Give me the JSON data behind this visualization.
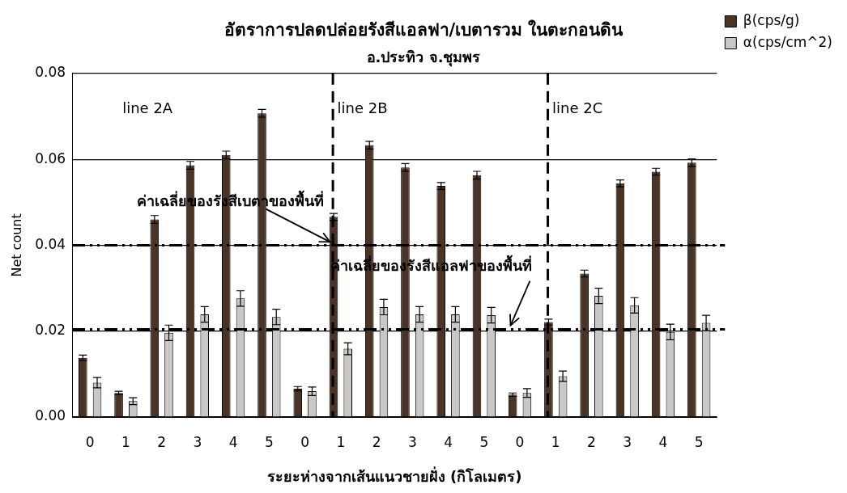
{
  "chart_data": {
    "type": "bar",
    "title": "อัตราการปลดปล่อยรังสีแอลฟา/เบตารวม ในตะกอนดิน",
    "subtitle": "อ.ประทิว จ.ชุมพร",
    "xlabel": "ระยะห่างจากเส้นแนวชายฝั่ง (กิโลเมตร)",
    "ylabel": "Net count",
    "categories": [
      "0",
      "1",
      "2",
      "3",
      "4",
      "5",
      "0",
      "1",
      "2",
      "3",
      "4",
      "5",
      "0",
      "1",
      "2",
      "3",
      "4",
      "5"
    ],
    "series": [
      {
        "name": "β(cps/g)",
        "color": "#4a3426",
        "values": [
          0.0138,
          0.0056,
          0.046,
          0.0586,
          0.061,
          0.0707,
          0.0066,
          0.0466,
          0.0633,
          0.0581,
          0.0538,
          0.0563,
          0.0052,
          0.0221,
          0.0334,
          0.0544,
          0.0571,
          0.0592
        ],
        "errors": [
          0.0006,
          0.0004,
          0.0009,
          0.0009,
          0.0009,
          0.0009,
          0.0005,
          0.0008,
          0.0009,
          0.0009,
          0.0008,
          0.0009,
          0.0004,
          0.0007,
          0.0008,
          0.0008,
          0.0008,
          0.0009
        ]
      },
      {
        "name": "α(cps/cm^2)",
        "color": "#c8c8c8",
        "values": [
          0.008,
          0.0037,
          0.0196,
          0.0239,
          0.0276,
          0.0233,
          0.006,
          0.0159,
          0.0256,
          0.0239,
          0.0239,
          0.0237,
          0.0056,
          0.0095,
          0.0282,
          0.026,
          0.0198,
          0.0219
        ],
        "errors": [
          0.0012,
          0.0008,
          0.0018,
          0.0018,
          0.0018,
          0.0018,
          0.001,
          0.0014,
          0.0018,
          0.0018,
          0.0018,
          0.0018,
          0.001,
          0.0012,
          0.0018,
          0.0018,
          0.0018,
          0.0018
        ]
      }
    ],
    "ylim": [
      0,
      0.08
    ],
    "yticks": [
      {
        "value": 0,
        "label": "0.00"
      },
      {
        "value": 0.02,
        "label": "0.02"
      },
      {
        "value": 0.04,
        "label": "0.04"
      },
      {
        "value": 0.06,
        "label": "0.06"
      },
      {
        "value": 0.08,
        "label": "0.08"
      }
    ],
    "grid": "y",
    "legend": "top right",
    "ref_lines": [
      {
        "axis": "y",
        "value": 0.04,
        "label": "ค่าเฉลี่ยของรังสีเบตาของพื้นที่",
        "color": "#000000",
        "line_style": "dashed"
      },
      {
        "axis": "y",
        "value": 0.0204,
        "label": "ค่าเฉลี่ยของรังสีแอลฟาของพื้นที่",
        "color": "#000000",
        "line_style": "dashed"
      }
    ],
    "annotations": [
      "line 2A",
      "line 2B",
      "line 2C"
    ]
  }
}
